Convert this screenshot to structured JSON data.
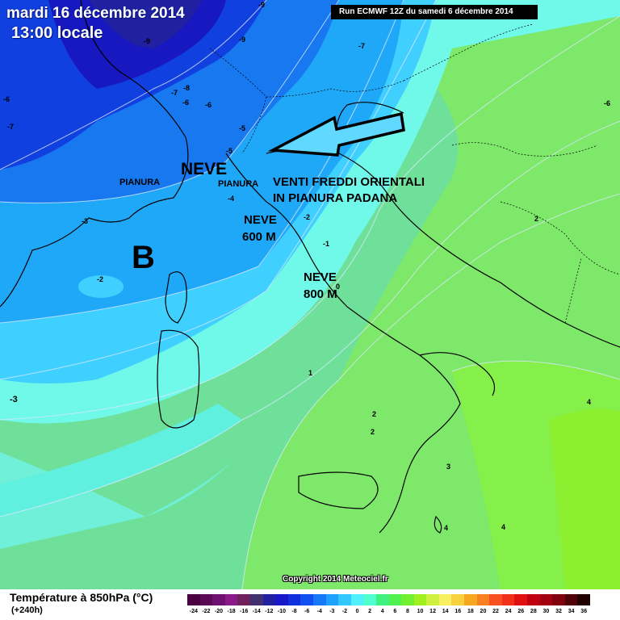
{
  "header": {
    "date": "mardi 16 décembre 2014",
    "time": "13:00 locale",
    "run": "Run ECMWF 12Z du samedi 6 décembre 2014"
  },
  "annotations": {
    "neve_big": "NEVE",
    "pianura_1": "PIANURA",
    "pianura_2": "PIANURA",
    "venti_1": "VENTI FREDDI ORIENTALI",
    "venti_2": "IN PIANURA PADANA",
    "neve_600_a": "NEVE",
    "neve_600_b": "600 M",
    "neve_800_a": "NEVE",
    "neve_800_b": "800 M",
    "low_marker": "B"
  },
  "isotherm_labels": [
    "-9",
    "-9",
    "-7",
    "-8",
    "-9",
    "-7",
    "-6",
    "-7",
    "-6",
    "-6",
    "-5",
    "-5",
    "-4",
    "-3",
    "-2",
    "-2",
    "-1",
    "0",
    "1",
    "2",
    "2",
    "2",
    "3",
    "4",
    "4",
    "4",
    "-3",
    "-6"
  ],
  "copyright": "Copyright 2014 Meteociel.fr",
  "legend": {
    "title": "Température à 850hPa (°C)",
    "subtitle": "(+240h)",
    "ticks": [
      "-24",
      "-22",
      "-20",
      "-18",
      "-16",
      "-14",
      "-12",
      "-10",
      "-8",
      "-6",
      "-4",
      "-3",
      "-2",
      "0",
      "2",
      "4",
      "6",
      "8",
      "10",
      "12",
      "14",
      "16",
      "18",
      "20",
      "22",
      "24",
      "26",
      "28",
      "30",
      "32",
      "34",
      "36"
    ],
    "colors": [
      "#4a0040",
      "#5a0a55",
      "#6e1070",
      "#8a1a8a",
      "#70205a",
      "#403070",
      "#2020a0",
      "#1818c8",
      "#1030e0",
      "#1050f0",
      "#1878f8",
      "#20a0ff",
      "#30c8ff",
      "#50f0ff",
      "#50ffd0",
      "#40f080",
      "#50f050",
      "#70f030",
      "#a0f020",
      "#d0f040",
      "#f8f060",
      "#f8d040",
      "#f8a820",
      "#f88020",
      "#f85020",
      "#f03018",
      "#e01010",
      "#c00010",
      "#a00010",
      "#800010",
      "#500008",
      "#200000"
    ]
  }
}
